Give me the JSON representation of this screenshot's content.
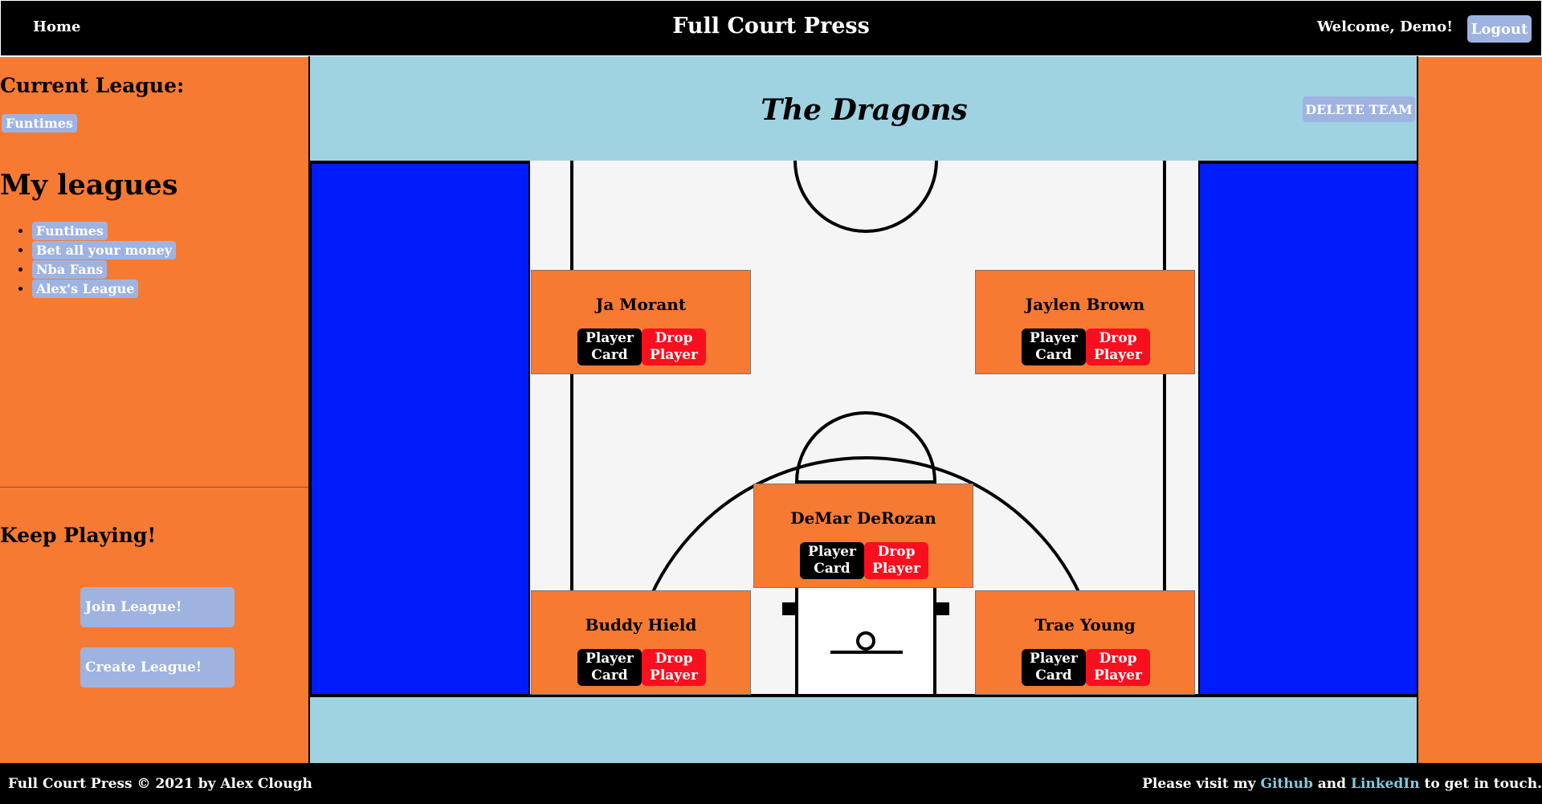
{
  "header": {
    "home_label": "Home",
    "site_title": "Full Court Press",
    "welcome_text": "Welcome, Demo!",
    "logout_label": "Logout"
  },
  "sidebar": {
    "current_league_heading": "Current League:",
    "current_league": "Funtimes",
    "my_leagues_heading": "My leagues",
    "leagues": [
      "Funtimes",
      "Bet all your money",
      "Nba Fans",
      "Alex's League"
    ],
    "keep_playing_heading": "Keep Playing!",
    "join_label": "Join League!",
    "create_label": "Create League!"
  },
  "team": {
    "name": "The Dragons",
    "delete_label": "DELETE TEAM"
  },
  "roster": [
    {
      "name": "Ja Morant",
      "card_label": "Player Card",
      "drop_label": "Drop Player"
    },
    {
      "name": "Jaylen Brown",
      "card_label": "Player Card",
      "drop_label": "Drop Player"
    },
    {
      "name": "DeMar DeRozan",
      "card_label": "Player Card",
      "drop_label": "Drop Player"
    },
    {
      "name": "Buddy Hield",
      "card_label": "Player Card",
      "drop_label": "Drop Player"
    },
    {
      "name": "Trae Young",
      "card_label": "Player Card",
      "drop_label": "Drop Player"
    }
  ],
  "footer": {
    "copyright": "Full Court Press © 2021 by Alex Clough",
    "visit_prefix": "Please visit my",
    "github_label": "Github",
    "and_text": "and",
    "linkedin_label": "LinkedIn",
    "visit_suffix": "to get in touch."
  },
  "colors": {
    "page_bg": "#f77a33",
    "header_bg": "#000000",
    "main_bg": "#9fd3e1",
    "bench": "#001cfa",
    "court": "#f5f5f5",
    "pill": "#9fb3e1",
    "drop": "#fa0f1f"
  }
}
